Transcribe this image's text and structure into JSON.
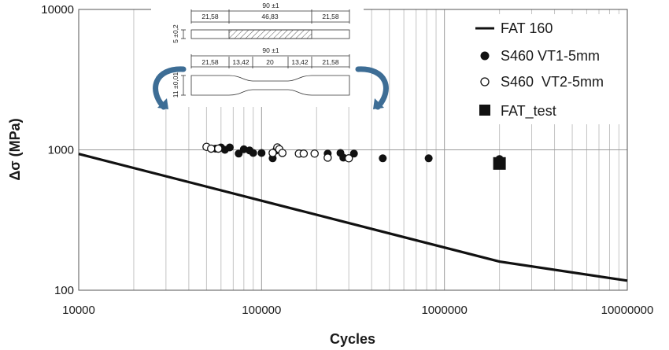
{
  "chart_data": {
    "type": "scatter",
    "xlabel": "Cycles",
    "ylabel": "Δσ (MPa)",
    "xscale": "log",
    "yscale": "log",
    "xlim": [
      10000,
      10000000
    ],
    "ylim": [
      100,
      10000
    ],
    "grid": true,
    "legend_position": "top-right",
    "x_tick_labels": [
      "10000",
      "100000",
      "1000000",
      "10000000"
    ],
    "y_tick_labels": [
      "100",
      "1000",
      "10000"
    ],
    "series": [
      {
        "name": "FAT 160",
        "kind": "line",
        "color": "#111111",
        "points": [
          [
            10000,
            935
          ],
          [
            2000000,
            160
          ],
          [
            10000000,
            117
          ]
        ]
      },
      {
        "name": "S460 VT1-5mm",
        "kind": "filled-circle",
        "color": "#111111",
        "points": [
          [
            56000,
            1020
          ],
          [
            60000,
            1040
          ],
          [
            63000,
            1000
          ],
          [
            67000,
            1040
          ],
          [
            75000,
            940
          ],
          [
            80000,
            1010
          ],
          [
            86000,
            990
          ],
          [
            90000,
            950
          ],
          [
            100000,
            950
          ],
          [
            115000,
            870
          ],
          [
            120000,
            990
          ],
          [
            230000,
            940
          ],
          [
            270000,
            950
          ],
          [
            280000,
            880
          ],
          [
            320000,
            940
          ],
          [
            460000,
            870
          ],
          [
            820000,
            870
          ],
          [
            2000000,
            860
          ]
        ]
      },
      {
        "name": "S460  VT2-5mm",
        "kind": "open-circle",
        "color": "#111111",
        "points": [
          [
            50000,
            1050
          ],
          [
            53000,
            1020
          ],
          [
            58000,
            1020
          ],
          [
            115000,
            950
          ],
          [
            122000,
            1040
          ],
          [
            125000,
            1010
          ],
          [
            130000,
            950
          ],
          [
            160000,
            940
          ],
          [
            170000,
            940
          ],
          [
            195000,
            940
          ],
          [
            230000,
            880
          ],
          [
            300000,
            870
          ]
        ]
      },
      {
        "name": "FAT_test",
        "kind": "filled-square",
        "color": "#111111",
        "points": [
          [
            2000000,
            800
          ]
        ]
      }
    ]
  },
  "specimen_sketch": {
    "top_specimen": {
      "overall_length": "90 ±1",
      "segments": [
        "21,58",
        "46,83",
        "21,58"
      ],
      "thickness": "5 ±0,2"
    },
    "bottom_specimen": {
      "overall_length": "90 ±1",
      "segments": [
        "21,58",
        "13,42",
        "20",
        "13,42",
        "21,58"
      ],
      "width": "11 ±0,01"
    },
    "arrow_color": "#3d6d95"
  }
}
